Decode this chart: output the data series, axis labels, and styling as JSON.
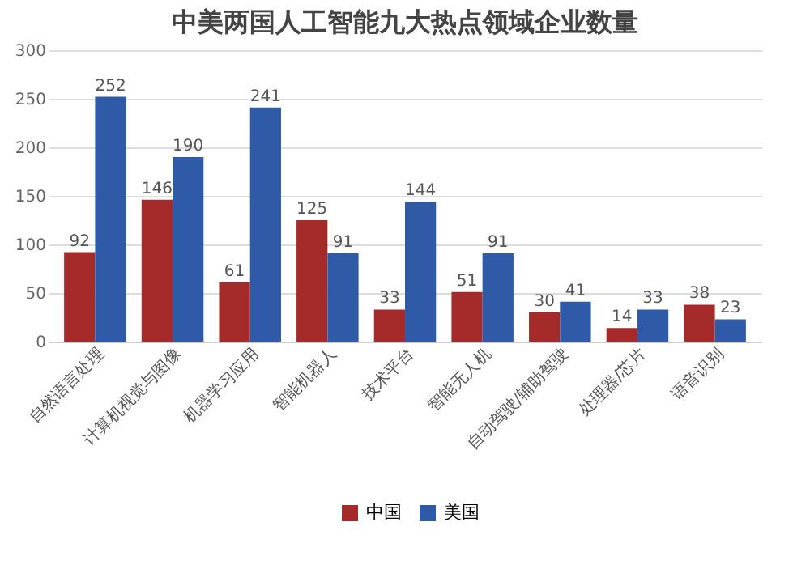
{
  "chart_data": {
    "type": "bar",
    "title": "中美两国人工智能九大热点领域企业数量",
    "categories": [
      "自然语言处理",
      "计算机视觉与图像",
      "机器学习应用",
      "智能机器人",
      "技术平台",
      "智能无人机",
      "自动驾驶/辅助驾驶",
      "处理器/芯片",
      "语音识别"
    ],
    "series": [
      {
        "name": "中国",
        "color": "#a52a2a",
        "values": [
          92,
          146,
          61,
          125,
          33,
          51,
          30,
          14,
          38
        ]
      },
      {
        "name": "美国",
        "color": "#2e5aa8",
        "values": [
          252,
          190,
          241,
          91,
          144,
          91,
          41,
          33,
          23
        ]
      }
    ],
    "ylim": [
      0,
      300
    ],
    "yticks": [
      0,
      50,
      100,
      150,
      200,
      250,
      300
    ],
    "grid": "y",
    "legend": "bottom",
    "data_labels": true
  }
}
